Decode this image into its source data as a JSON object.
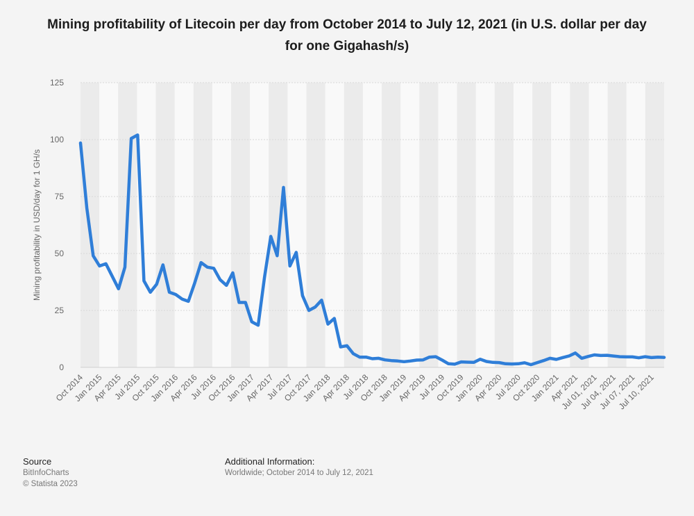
{
  "chart_data": {
    "type": "line",
    "title": "Mining profitability of Litecoin per day from October 2014 to July 12, 2021 (in U.S. dollar per day for one Gigahash/s)",
    "xlabel": "",
    "ylabel": "Mining profitability in USD/day for 1 GH/s",
    "ylim": [
      0,
      125
    ],
    "yticks": [
      0,
      25,
      50,
      75,
      100,
      125
    ],
    "grid": true,
    "categories": [
      "Oct 2014",
      "Nov 2014",
      "Dec 2014",
      "Jan 2015",
      "Feb 2015",
      "Mar 2015",
      "Apr 2015",
      "May 2015",
      "Jun 2015",
      "Jul 2015",
      "Aug 2015",
      "Sep 2015",
      "Oct 2015",
      "Nov 2015",
      "Dec 2015",
      "Jan 2016",
      "Feb 2016",
      "Mar 2016",
      "Apr 2016",
      "May 2016",
      "Jun 2016",
      "Jul 2016",
      "Aug 2016",
      "Sep 2016",
      "Oct 2016",
      "Nov 2016",
      "Dec 2016",
      "Jan 2017",
      "Feb 2017",
      "Mar 2017",
      "Apr 2017",
      "May 2017",
      "Jun 2017",
      "Jul 2017",
      "Aug 2017",
      "Sep 2017",
      "Oct 2017",
      "Nov 2017",
      "Dec 2017",
      "Jan 2018",
      "Feb 2018",
      "Mar 2018",
      "Apr 2018",
      "May 2018",
      "Jun 2018",
      "Jul 2018",
      "Aug 2018",
      "Sep 2018",
      "Oct 2018",
      "Nov 2018",
      "Dec 2018",
      "Jan 2019",
      "Feb 2019",
      "Mar 2019",
      "Apr 2019",
      "May 2019",
      "Jun 2019",
      "Jul 2019",
      "Aug 2019",
      "Sep 2019",
      "Oct 2019",
      "Nov 2019",
      "Dec 2019",
      "Jan 2020",
      "Feb 2020",
      "Mar 2020",
      "Apr 2020",
      "May 2020",
      "Jun 2020",
      "Jul 2020",
      "Aug 2020",
      "Sep 2020",
      "Oct 2020",
      "Nov 2020",
      "Dec 2020",
      "Jan 2021",
      "Feb 2021",
      "Mar 2021",
      "Apr 2021",
      "May 2021",
      "Jun 2021",
      "Jul 01, 2021",
      "Jul 02, 2021",
      "Jul 03, 2021",
      "Jul 04, 2021",
      "Jul 05, 2021",
      "Jul 06, 2021",
      "Jul 07, 2021",
      "Jul 08, 2021",
      "Jul 09, 2021",
      "Jul 10, 2021",
      "Jul 11, 2021",
      "Jul 12, 2021"
    ],
    "tick_labels": [
      "Oct 2014",
      "Jan 2015",
      "Apr 2015",
      "Jul 2015",
      "Oct 2015",
      "Jan 2016",
      "Apr 2016",
      "Jul 2016",
      "Oct 2016",
      "Jan 2017",
      "Apr 2017",
      "Jul 2017",
      "Oct 2017",
      "Jan 2018",
      "Apr 2018",
      "Jul 2018",
      "Oct 2018",
      "Jan 2019",
      "Apr 2019",
      "Jul 2019",
      "Oct 2019",
      "Jan 2020",
      "Apr 2020",
      "Jul 2020",
      "Oct 2020",
      "Jan 2021",
      "Apr 2021",
      "Jul 01, 2021",
      "Jul 04, 2021",
      "Jul 07, 2021",
      "Jul 10, 2021"
    ],
    "series": [
      {
        "name": "Mining profitability",
        "color": "#2f7ed8",
        "values": [
          98.5,
          70,
          49,
          44.5,
          45.5,
          40,
          34.5,
          44,
          100.5,
          102,
          38,
          33,
          36.5,
          45,
          33,
          32,
          30,
          29,
          37,
          46,
          44,
          43.5,
          38.5,
          36,
          41.5,
          28.5,
          28.5,
          20,
          18.5,
          39.5,
          57.5,
          49,
          79,
          44.5,
          50.5,
          31.5,
          25,
          26.5,
          29.5,
          19,
          21.5,
          9,
          9.5,
          6,
          4.5,
          4.5,
          3.8,
          4,
          3.3,
          3,
          2.8,
          2.5,
          2.8,
          3.2,
          3.3,
          4.5,
          4.7,
          3.2,
          1.6,
          1.4,
          2.4,
          2.3,
          2.2,
          3.6,
          2.6,
          2.2,
          2.1,
          1.6,
          1.5,
          1.6,
          2,
          1.2,
          2.1,
          3,
          4,
          3.5,
          4.3,
          5,
          6.3,
          4,
          4.8,
          5.5,
          5.2,
          5.3,
          5,
          4.7,
          4.6,
          4.6,
          4.2,
          4.7,
          4.3,
          4.5,
          4.4
        ]
      }
    ]
  },
  "footer": {
    "source_label": "Source",
    "source_name": "BitInfoCharts",
    "copyright": "© Statista 2023",
    "info_label": "Additional Information:",
    "info_text": "Worldwide; October 2014 to July 12, 2021"
  },
  "colors": {
    "background": "#f4f4f4",
    "band": "#ebebeb",
    "line": "#2f7ed8",
    "grid": "#d8d8d8"
  }
}
